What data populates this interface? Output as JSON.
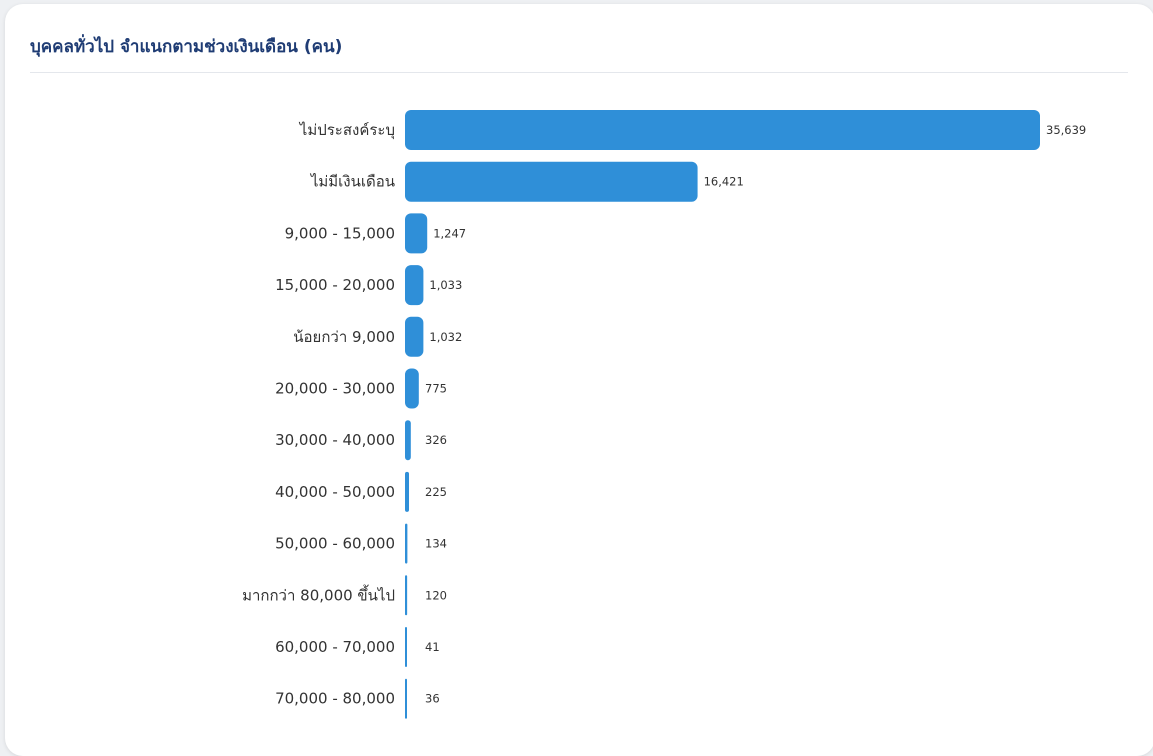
{
  "card": {
    "title": "บุคคลทั่วไป จำแนกตามช่วงเงินเดือน (คน)"
  },
  "colors": {
    "bar": "#2f8fd8",
    "title": "#1f3c74",
    "label": "#333333"
  },
  "chart_data": {
    "type": "bar",
    "orientation": "horizontal",
    "title": "บุคคลทั่วไป จำแนกตามช่วงเงินเดือน (คน)",
    "categories": [
      "ไม่ประสงค์ระบุ",
      "ไม่มีเงินเดือน",
      "9,000 - 15,000",
      "15,000 - 20,000",
      "น้อยกว่า 9,000",
      "20,000 - 30,000",
      "30,000 - 40,000",
      "40,000 - 50,000",
      "50,000 - 60,000",
      "มากกว่า 80,000 ขึ้นไป",
      "60,000 - 70,000",
      "70,000 - 80,000"
    ],
    "values": [
      35639,
      16421,
      1247,
      1033,
      1032,
      775,
      326,
      225,
      134,
      120,
      41,
      36
    ],
    "value_labels": [
      "35,639",
      "16,421",
      "1,247",
      "1,033",
      "1,032",
      "775",
      "326",
      "225",
      "134",
      "120",
      "41",
      "36"
    ],
    "xlim": [
      0,
      35639
    ],
    "grid": false,
    "legend": "none"
  }
}
